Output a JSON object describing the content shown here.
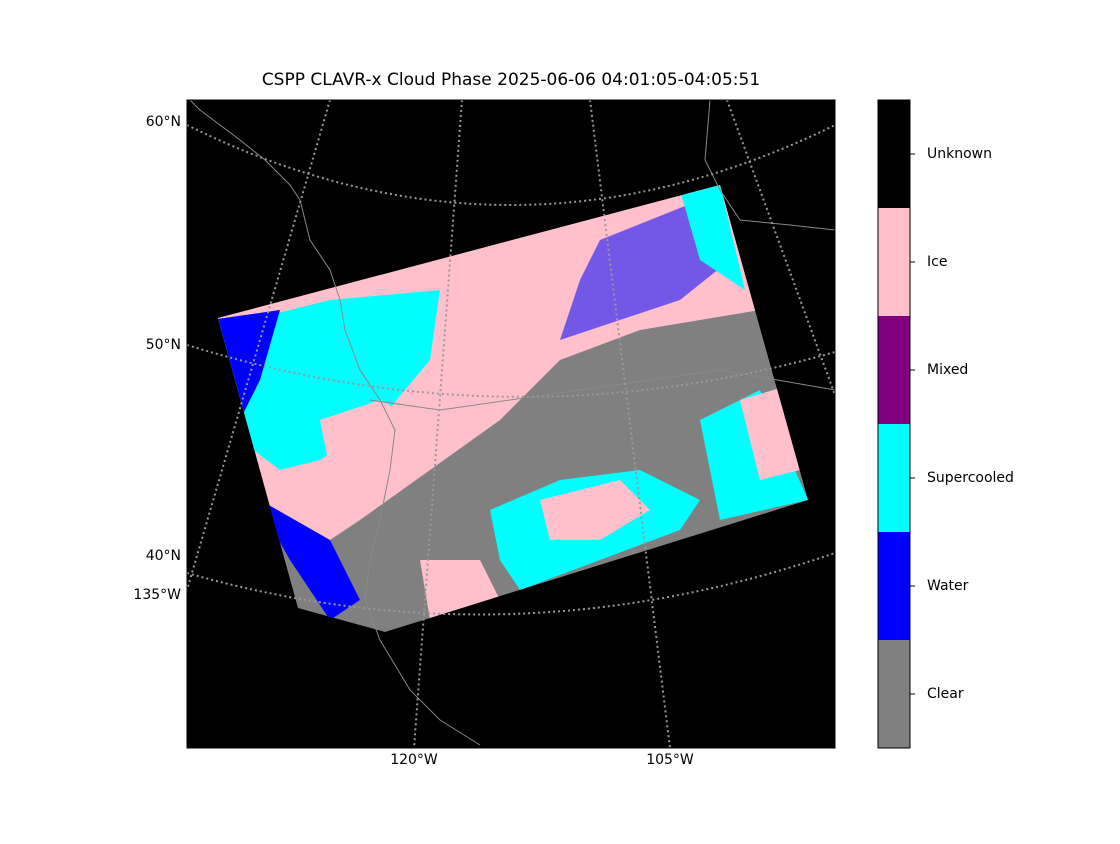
{
  "title": "CSPP CLAVR-x Cloud Phase 2025-06-06 04:01:05-04:05:51",
  "map": {
    "lat_labels": [
      "60°N",
      "50°N",
      "40°N"
    ],
    "lon_labels": [
      "135°W",
      "120°W",
      "105°W"
    ]
  },
  "colorbar": {
    "classes": [
      {
        "name": "Unknown",
        "color": "#000000"
      },
      {
        "name": "Ice",
        "color": "#ffc0cb"
      },
      {
        "name": "Mixed",
        "color": "#800080"
      },
      {
        "name": "Supercooled",
        "color": "#00ffff"
      },
      {
        "name": "Water",
        "color": "#0000ff"
      },
      {
        "name": "Clear",
        "color": "#808080"
      }
    ]
  }
}
